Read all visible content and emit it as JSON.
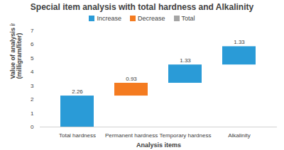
{
  "chart_data": {
    "type": "waterfall",
    "title": "Special item analysis with total hardness and Alkalinity",
    "x_label": "Analysis items",
    "y_label": "Value of analysis items (milligram/liter)",
    "categories": [
      "Total hardness",
      "Permanent hardness",
      "Temporary hardness",
      "Alkalinity"
    ],
    "series": [
      {
        "name": "Increase",
        "color": "#2a9bd7",
        "values": [
          2.26,
          null,
          1.33,
          1.33
        ]
      },
      {
        "name": "Decrease",
        "color": "#f47b20",
        "values": [
          null,
          0.93,
          null,
          null
        ]
      },
      {
        "name": "Total",
        "color": "#a5a5a5",
        "values": [
          null,
          null,
          null,
          null
        ]
      }
    ],
    "stacked": true,
    "ylim": [
      0,
      7
    ],
    "yticks": [
      0,
      1,
      2,
      3,
      4,
      5,
      6,
      7
    ],
    "grid": false,
    "legend": "top",
    "data_labels": true
  }
}
